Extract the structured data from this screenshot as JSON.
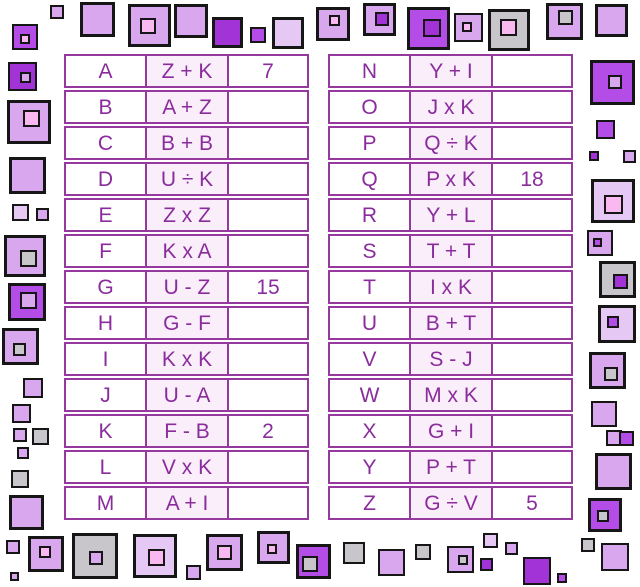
{
  "colors": {
    "table_line": "#95399e",
    "text": "#8a2c9c",
    "expression_bg": "#f9eef9",
    "row_bg": "#ffffff",
    "square_outline": "#161616",
    "deco_palette": {
      "light": "#d9a7ee",
      "lighter": "#e6c8f4",
      "vivid": "#b44ce8",
      "deep": "#a233d6",
      "gray": "#c8c5cb",
      "pink": "#f9b8ef"
    }
  },
  "left_table": {
    "rows": [
      {
        "letter": "A",
        "expression": "Z + K",
        "answer": "7"
      },
      {
        "letter": "B",
        "expression": "A + Z",
        "answer": ""
      },
      {
        "letter": "C",
        "expression": "B + B",
        "answer": ""
      },
      {
        "letter": "D",
        "expression": "U ÷ K",
        "answer": ""
      },
      {
        "letter": "E",
        "expression": "Z x Z",
        "answer": ""
      },
      {
        "letter": "F",
        "expression": "K x A",
        "answer": ""
      },
      {
        "letter": "G",
        "expression": "U - Z",
        "answer": "15"
      },
      {
        "letter": "H",
        "expression": "G - F",
        "answer": ""
      },
      {
        "letter": "I",
        "expression": "K x K",
        "answer": ""
      },
      {
        "letter": "J",
        "expression": "U - A",
        "answer": ""
      },
      {
        "letter": "K",
        "expression": "F - B",
        "answer": "2"
      },
      {
        "letter": "L",
        "expression": "V x K",
        "answer": ""
      },
      {
        "letter": "M",
        "expression": "A + I",
        "answer": ""
      }
    ]
  },
  "right_table": {
    "rows": [
      {
        "letter": "N",
        "expression": "Y + I",
        "answer": ""
      },
      {
        "letter": "O",
        "expression": "J x K",
        "answer": ""
      },
      {
        "letter": "P",
        "expression": "Q ÷ K",
        "answer": ""
      },
      {
        "letter": "Q",
        "expression": "P x K",
        "answer": "18"
      },
      {
        "letter": "R",
        "expression": "Y + L",
        "answer": ""
      },
      {
        "letter": "S",
        "expression": "T + T",
        "answer": ""
      },
      {
        "letter": "T",
        "expression": "I x K",
        "answer": ""
      },
      {
        "letter": "U",
        "expression": "B + T",
        "answer": ""
      },
      {
        "letter": "V",
        "expression": "S - J",
        "answer": ""
      },
      {
        "letter": "W",
        "expression": "M x K",
        "answer": ""
      },
      {
        "letter": "X",
        "expression": "G + I",
        "answer": ""
      },
      {
        "letter": "Y",
        "expression": "P + T",
        "answer": ""
      },
      {
        "letter": "Z",
        "expression": "G ÷ V",
        "answer": "5"
      }
    ]
  }
}
